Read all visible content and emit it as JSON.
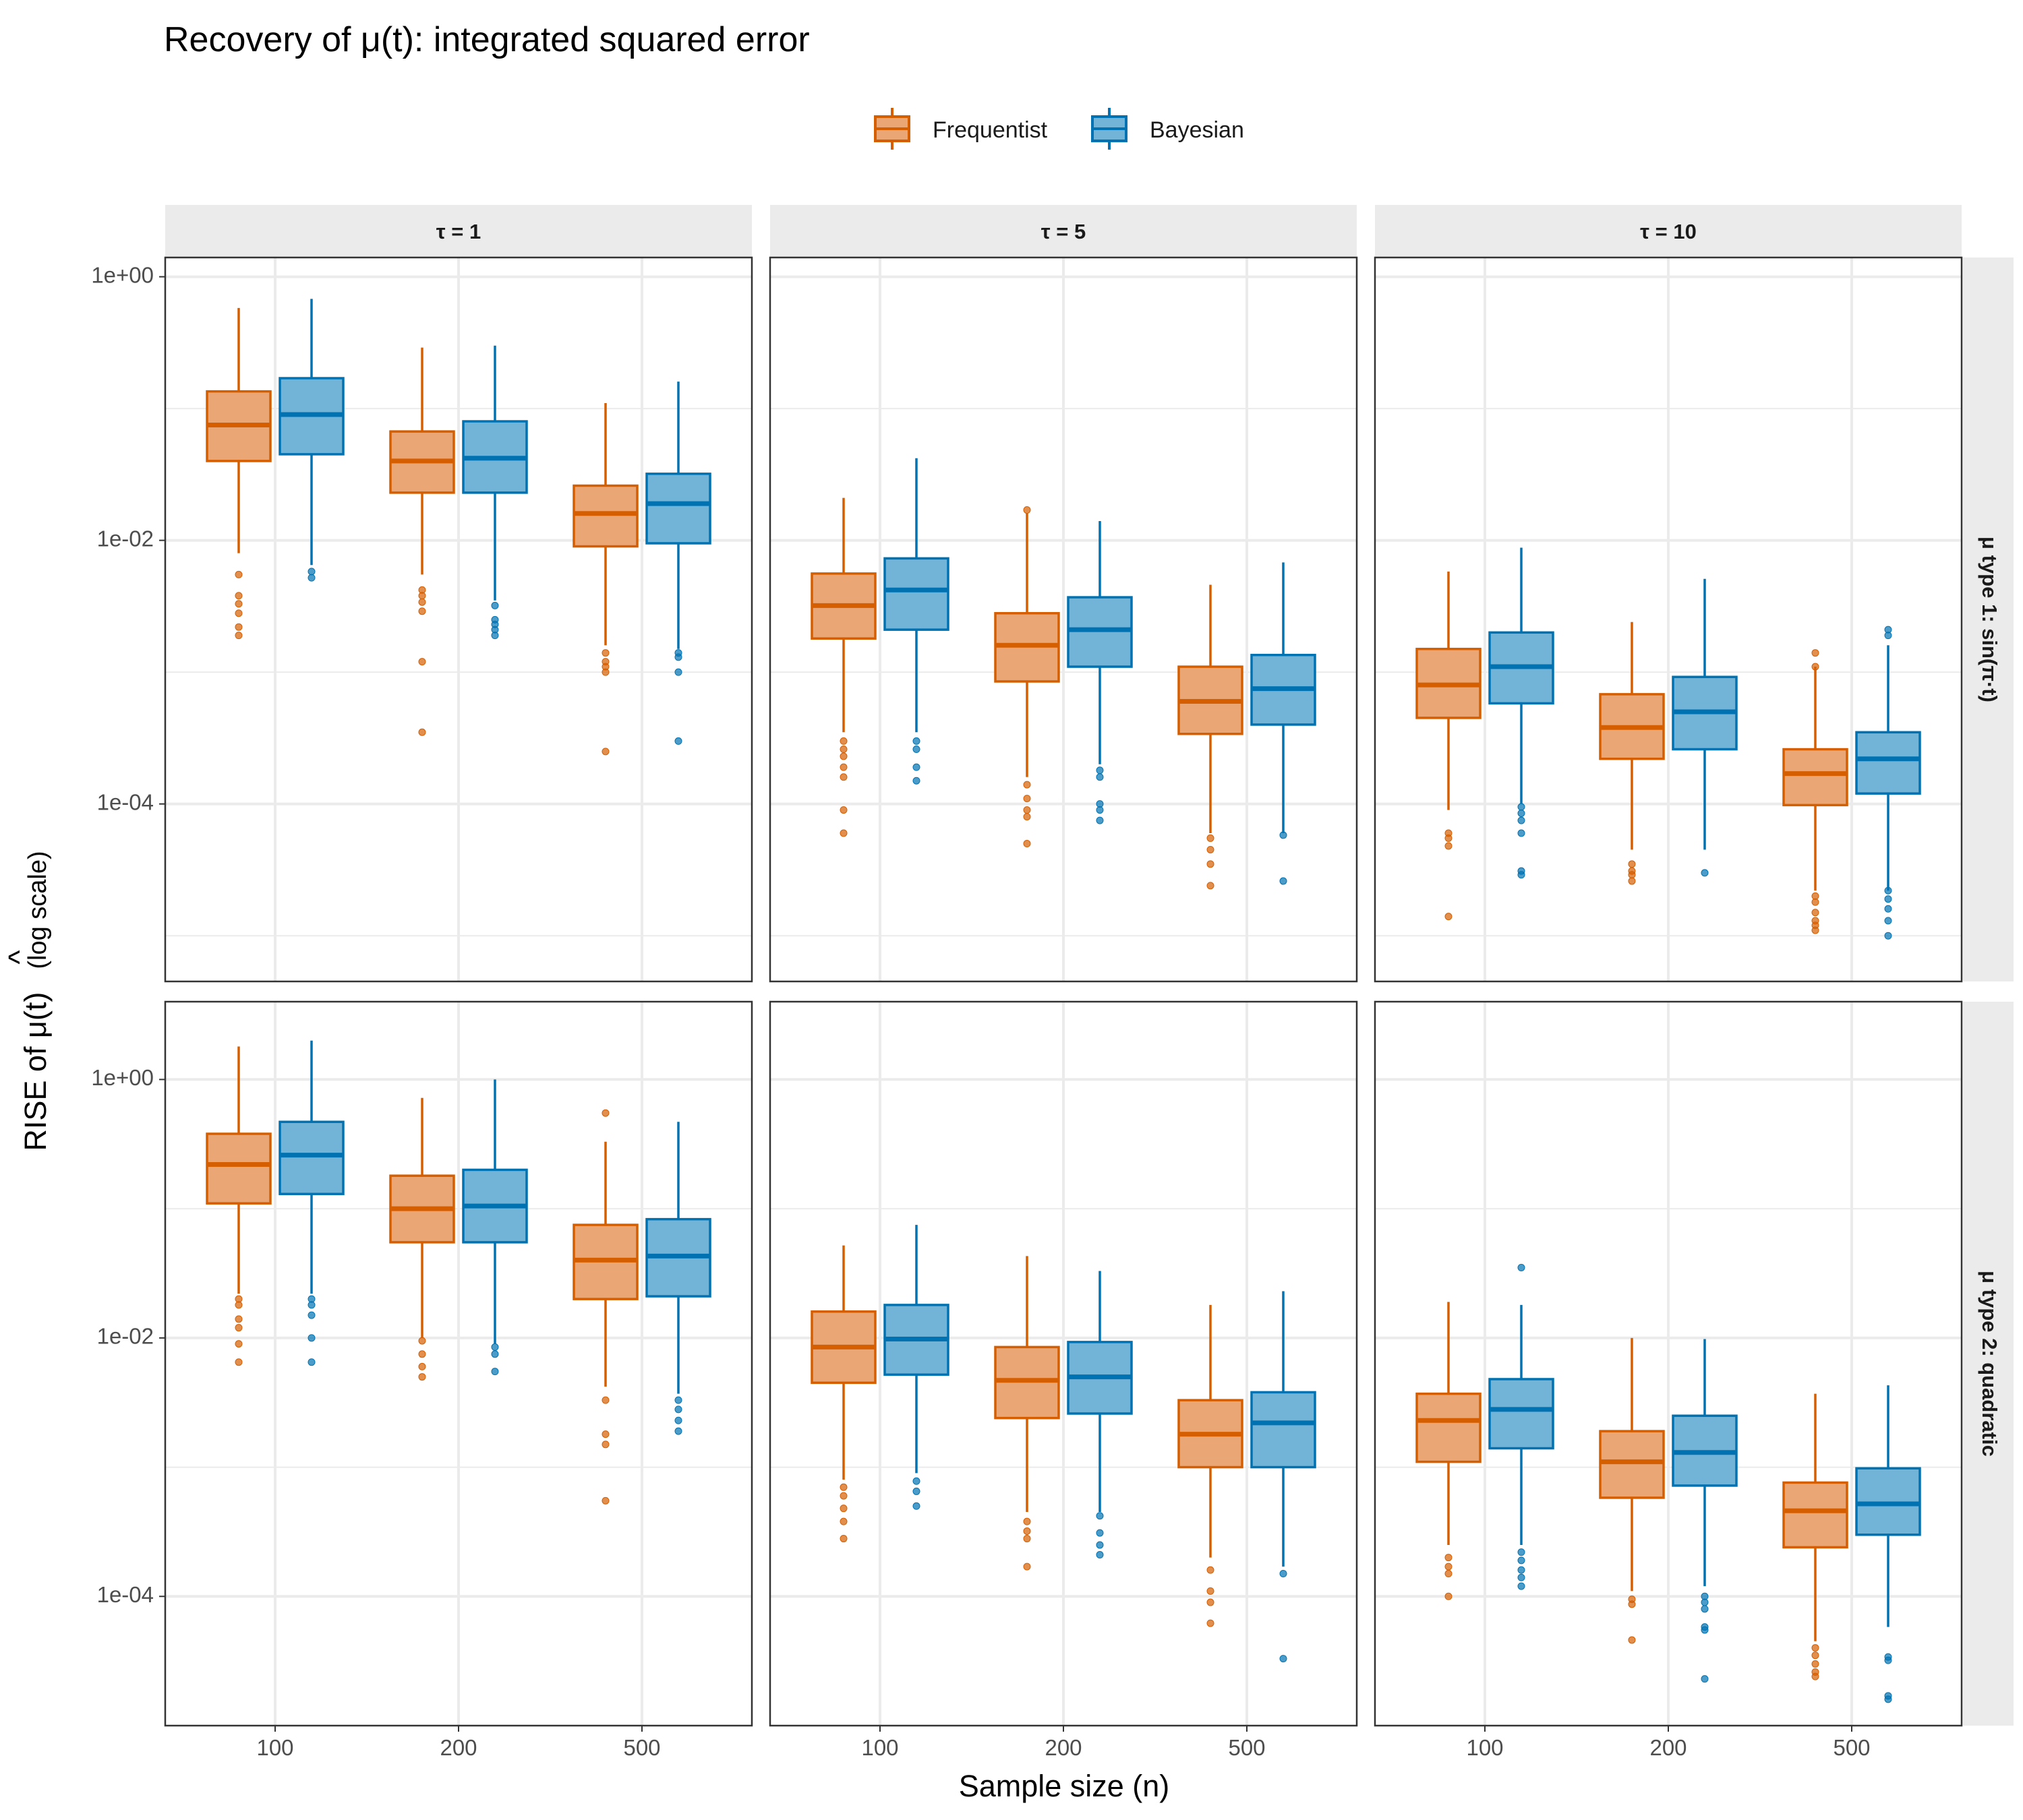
{
  "title": "Recovery of μ(t): integrated squared error",
  "colors": {
    "frequentist": "#d55e00",
    "bayesian": "#0072b2",
    "frequentist_fill": "#eba675",
    "bayesian_fill": "#72b3d8"
  },
  "chart_data": {
    "type": "boxplot",
    "title": "Recovery of μ(t): integrated squared error",
    "xlabel": "Sample size (n)",
    "ylabel": "RISE of μ̂(t)  (log scale)",
    "ylabel_main": "RISE of ",
    "ylabel_mu": "μ(t)",
    "ylabel_hat": "^",
    "ylabel_suffix": "(log scale)",
    "yscale": "log10",
    "grid": true,
    "legend_position": "top",
    "categories": [
      "100",
      "200",
      "500"
    ],
    "legend": [
      {
        "name": "Frequentist",
        "color": "#d55e00"
      },
      {
        "name": "Bayesian",
        "color": "#0072b2"
      }
    ],
    "col_facets": [
      "τ = 1",
      "τ = 5",
      "τ = 10"
    ],
    "row_facets": [
      "μ type 1: sin(π·t)",
      "μ type 2: quadratic"
    ],
    "y_ticks": [
      {
        "value": 1,
        "label": "1e+00"
      },
      {
        "value": 0.01,
        "label": "1e-02"
      },
      {
        "value": 0.0001,
        "label": "1e-04"
      }
    ],
    "rows": [
      {
        "row": "μ type 1: sin(π·t)",
        "ylim": [
          4.5e-06,
          1.4
        ],
        "panels": [
          {
            "col": "τ = 1",
            "boxes": [
              {
                "n": "100",
                "method": "Frequentist",
                "lo": 0.008,
                "q1": 0.04,
                "med": 0.075,
                "q3": 0.135,
                "hi": 0.58,
                "out": [
                  0.0055,
                  0.0038,
                  0.0033,
                  0.0028,
                  0.0022,
                  0.0019
                ]
              },
              {
                "n": "100",
                "method": "Bayesian",
                "lo": 0.0065,
                "q1": 0.045,
                "med": 0.09,
                "q3": 0.17,
                "hi": 0.68,
                "out": [
                  0.0058,
                  0.0052
                ]
              },
              {
                "n": "200",
                "method": "Frequentist",
                "lo": 0.0055,
                "q1": 0.023,
                "med": 0.04,
                "q3": 0.067,
                "hi": 0.29,
                "out": [
                  0.0042,
                  0.0038,
                  0.0034,
                  0.0029,
                  0.0012,
                  0.00035
                ]
              },
              {
                "n": "200",
                "method": "Bayesian",
                "lo": 0.0035,
                "q1": 0.023,
                "med": 0.042,
                "q3": 0.08,
                "hi": 0.3,
                "out": [
                  0.0032,
                  0.0025,
                  0.0023,
                  0.0021,
                  0.0019
                ]
              },
              {
                "n": "500",
                "method": "Frequentist",
                "lo": 0.0016,
                "q1": 0.009,
                "med": 0.016,
                "q3": 0.026,
                "hi": 0.11,
                "out": [
                  0.0014,
                  0.0012,
                  0.0011,
                  0.001,
                  0.00025
                ]
              },
              {
                "n": "500",
                "method": "Bayesian",
                "lo": 0.0015,
                "q1": 0.0095,
                "med": 0.019,
                "q3": 0.032,
                "hi": 0.16,
                "out": [
                  0.0014,
                  0.0013,
                  0.001,
                  0.0003
                ]
              }
            ]
          },
          {
            "col": "τ = 5",
            "boxes": [
              {
                "n": "100",
                "method": "Frequentist",
                "lo": 0.00035,
                "q1": 0.0018,
                "med": 0.0032,
                "q3": 0.0056,
                "hi": 0.021,
                "out": [
                  0.0003,
                  0.00026,
                  0.00023,
                  0.00019,
                  0.00016,
                  9e-05,
                  6e-05
                ]
              },
              {
                "n": "100",
                "method": "Bayesian",
                "lo": 0.00035,
                "q1": 0.0021,
                "med": 0.0042,
                "q3": 0.0073,
                "hi": 0.042,
                "out": [
                  0.0003,
                  0.00026,
                  0.00019,
                  0.00015
                ]
              },
              {
                "n": "200",
                "method": "Frequentist",
                "lo": 0.00016,
                "q1": 0.00085,
                "med": 0.0016,
                "q3": 0.0028,
                "hi": 0.016,
                "out": [
                  0.017,
                  0.00014,
                  0.00011,
                  9e-05,
                  8e-05,
                  5e-05
                ]
              },
              {
                "n": "200",
                "method": "Bayesian",
                "lo": 0.0002,
                "q1": 0.0011,
                "med": 0.0021,
                "q3": 0.0037,
                "hi": 0.014,
                "out": [
                  0.00018,
                  0.00016,
                  0.0001,
                  9e-05,
                  7.5e-05
                ]
              },
              {
                "n": "500",
                "method": "Frequentist",
                "lo": 6e-05,
                "q1": 0.00034,
                "med": 0.0006,
                "q3": 0.0011,
                "hi": 0.0046,
                "out": [
                  5.5e-05,
                  4.5e-05,
                  3.5e-05,
                  2.4e-05
                ]
              },
              {
                "n": "500",
                "method": "Bayesian",
                "lo": 6e-05,
                "q1": 0.0004,
                "med": 0.00075,
                "q3": 0.00135,
                "hi": 0.0068,
                "out": [
                  5.8e-05,
                  2.6e-05
                ]
              }
            ]
          },
          {
            "col": "τ = 10",
            "boxes": [
              {
                "n": "100",
                "method": "Frequentist",
                "lo": 9e-05,
                "q1": 0.00045,
                "med": 0.0008,
                "q3": 0.0015,
                "hi": 0.0058,
                "out": [
                  6e-05,
                  5.5e-05,
                  4.8e-05,
                  1.4e-05
                ]
              },
              {
                "n": "100",
                "method": "Bayesian",
                "lo": 0.0001,
                "q1": 0.00058,
                "med": 0.0011,
                "q3": 0.002,
                "hi": 0.0088,
                "out": [
                  9.5e-05,
                  8.5e-05,
                  7.5e-05,
                  6e-05,
                  3.1e-05,
                  2.9e-05
                ]
              },
              {
                "n": "200",
                "method": "Frequentist",
                "lo": 4.5e-05,
                "q1": 0.00022,
                "med": 0.00038,
                "q3": 0.00068,
                "hi": 0.0024,
                "out": [
                  3.5e-05,
                  3.1e-05,
                  2.9e-05,
                  2.6e-05
                ]
              },
              {
                "n": "200",
                "method": "Bayesian",
                "lo": 4.5e-05,
                "q1": 0.00026,
                "med": 0.0005,
                "q3": 0.00092,
                "hi": 0.0051,
                "out": [
                  3e-05
                ]
              },
              {
                "n": "500",
                "method": "Frequentist",
                "lo": 2.2e-05,
                "q1": 9.8e-05,
                "med": 0.00017,
                "q3": 0.00026,
                "hi": 0.0011,
                "out": [
                  0.0014,
                  0.0011,
                  2e-05,
                  1.8e-05,
                  1.5e-05,
                  1.3e-05,
                  1.2e-05,
                  1.1e-05
                ]
              },
              {
                "n": "500",
                "method": "Bayesian",
                "lo": 2.2e-05,
                "q1": 0.00012,
                "med": 0.00022,
                "q3": 0.00035,
                "hi": 0.0016,
                "out": [
                  0.0021,
                  0.0019,
                  2.2e-05,
                  1.9e-05,
                  1.6e-05,
                  1.3e-05,
                  1e-05
                ]
              }
            ]
          }
        ]
      },
      {
        "row": "μ type 2: quadratic",
        "ylim": [
          1e-05,
          4.0
        ],
        "panels": [
          {
            "col": "τ = 1",
            "boxes": [
              {
                "n": "100",
                "method": "Frequentist",
                "lo": 0.022,
                "q1": 0.11,
                "med": 0.22,
                "q3": 0.38,
                "hi": 1.8,
                "out": [
                  0.02,
                  0.018,
                  0.014,
                  0.012,
                  0.009,
                  0.0065
                ]
              },
              {
                "n": "100",
                "method": "Bayesian",
                "lo": 0.022,
                "q1": 0.13,
                "med": 0.26,
                "q3": 0.47,
                "hi": 2.0,
                "out": [
                  0.02,
                  0.018,
                  0.015,
                  0.01,
                  0.0065
                ]
              },
              {
                "n": "200",
                "method": "Frequentist",
                "lo": 0.01,
                "q1": 0.055,
                "med": 0.1,
                "q3": 0.18,
                "hi": 0.72,
                "out": [
                  0.0095,
                  0.0075,
                  0.006,
                  0.005
                ]
              },
              {
                "n": "200",
                "method": "Bayesian",
                "lo": 0.009,
                "q1": 0.055,
                "med": 0.105,
                "q3": 0.2,
                "hi": 1.0,
                "out": [
                  0.0085,
                  0.0075,
                  0.0055
                ]
              },
              {
                "n": "500",
                "method": "Frequentist",
                "lo": 0.0042,
                "q1": 0.02,
                "med": 0.04,
                "q3": 0.075,
                "hi": 0.33,
                "out": [
                  0.55,
                  0.0033,
                  0.0018,
                  0.0015,
                  0.00055
                ]
              },
              {
                "n": "500",
                "method": "Bayesian",
                "lo": 0.0037,
                "q1": 0.021,
                "med": 0.043,
                "q3": 0.083,
                "hi": 0.47,
                "out": [
                  0.0033,
                  0.0028,
                  0.0023,
                  0.0019
                ]
              }
            ]
          },
          {
            "col": "τ = 5",
            "boxes": [
              {
                "n": "100",
                "method": "Frequentist",
                "lo": 0.0008,
                "q1": 0.0045,
                "med": 0.0085,
                "q3": 0.016,
                "hi": 0.052,
                "out": [
                  0.0007,
                  0.0006,
                  0.00048,
                  0.00038,
                  0.00028
                ]
              },
              {
                "n": "100",
                "method": "Bayesian",
                "lo": 0.0009,
                "q1": 0.0052,
                "med": 0.0098,
                "q3": 0.018,
                "hi": 0.075,
                "out": [
                  0.00078,
                  0.00065,
                  0.0005
                ]
              },
              {
                "n": "200",
                "method": "Frequentist",
                "lo": 0.00045,
                "q1": 0.0024,
                "med": 0.0047,
                "q3": 0.0085,
                "hi": 0.043,
                "out": [
                  0.00038,
                  0.00032,
                  0.00028,
                  0.00017
                ]
              },
              {
                "n": "200",
                "method": "Bayesian",
                "lo": 0.00045,
                "q1": 0.0026,
                "med": 0.005,
                "q3": 0.0093,
                "hi": 0.033,
                "out": [
                  0.00042,
                  0.00031,
                  0.00025,
                  0.00021
                ]
              },
              {
                "n": "500",
                "method": "Frequentist",
                "lo": 0.0002,
                "q1": 0.001,
                "med": 0.0018,
                "q3": 0.0033,
                "hi": 0.018,
                "out": [
                  0.00016,
                  0.00011,
                  9e-05,
                  6.2e-05
                ]
              },
              {
                "n": "500",
                "method": "Bayesian",
                "lo": 0.00017,
                "q1": 0.001,
                "med": 0.0022,
                "q3": 0.0038,
                "hi": 0.023,
                "out": [
                  0.00015,
                  3.3e-05
                ]
              }
            ]
          },
          {
            "col": "τ = 10",
            "boxes": [
              {
                "n": "100",
                "method": "Frequentist",
                "lo": 0.00025,
                "q1": 0.0011,
                "med": 0.0023,
                "q3": 0.0037,
                "hi": 0.019,
                "out": [
                  0.0002,
                  0.00017,
                  0.00015,
                  0.0001
                ]
              },
              {
                "n": "100",
                "method": "Bayesian",
                "lo": 0.00025,
                "q1": 0.0014,
                "med": 0.0028,
                "q3": 0.0048,
                "hi": 0.018,
                "out": [
                  0.035,
                  0.00022,
                  0.00019,
                  0.00016,
                  0.00014,
                  0.00012
                ]
              },
              {
                "n": "200",
                "method": "Frequentist",
                "lo": 0.00011,
                "q1": 0.00058,
                "med": 0.0011,
                "q3": 0.0019,
                "hi": 0.01,
                "out": [
                  9.5e-05,
                  8.7e-05,
                  4.6e-05
                ]
              },
              {
                "n": "200",
                "method": "Bayesian",
                "lo": 0.00012,
                "q1": 0.00072,
                "med": 0.0013,
                "q3": 0.0025,
                "hi": 0.0098,
                "out": [
                  0.0001,
                  9e-05,
                  8e-05,
                  5.8e-05,
                  5.5e-05,
                  2.3e-05
                ]
              },
              {
                "n": "500",
                "method": "Frequentist",
                "lo": 4.5e-05,
                "q1": 0.00024,
                "med": 0.00046,
                "q3": 0.00076,
                "hi": 0.0037,
                "out": [
                  4e-05,
                  3.5e-05,
                  3e-05,
                  2.6e-05,
                  2.4e-05
                ]
              },
              {
                "n": "500",
                "method": "Bayesian",
                "lo": 5.8e-05,
                "q1": 0.0003,
                "med": 0.00052,
                "q3": 0.00098,
                "hi": 0.0043,
                "out": [
                  3.4e-05,
                  3.2e-05,
                  1.7e-05,
                  1.6e-05
                ]
              }
            ]
          }
        ]
      }
    ]
  }
}
